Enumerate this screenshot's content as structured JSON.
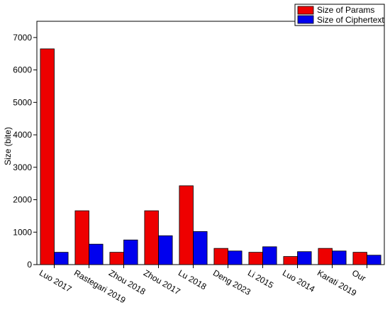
{
  "chart_data": {
    "type": "bar",
    "title": "",
    "xlabel": "",
    "ylabel": "Size (bite)",
    "ylim": [
      0,
      7500
    ],
    "yticks": [
      0,
      1000,
      2000,
      3000,
      4000,
      5000,
      6000,
      7000
    ],
    "categories": [
      "Luo 2017",
      "Rastegari 2019",
      "Zhou 2018",
      "Zhou 2017",
      "Lu 2018",
      "Deng 2023",
      "Li 2015",
      "Luo 2014",
      "Karati 2019",
      "Our"
    ],
    "series": [
      {
        "name": "Size of Params",
        "color": "#ee0000",
        "values": [
          6650,
          1660,
          380,
          1660,
          2430,
          500,
          380,
          250,
          500,
          380
        ]
      },
      {
        "name": "Size of Ciphertext",
        "color": "#0000ee",
        "values": [
          380,
          630,
          760,
          890,
          1020,
          420,
          550,
          400,
          420,
          290
        ]
      }
    ],
    "legend_position": "top-right",
    "grid": false
  }
}
